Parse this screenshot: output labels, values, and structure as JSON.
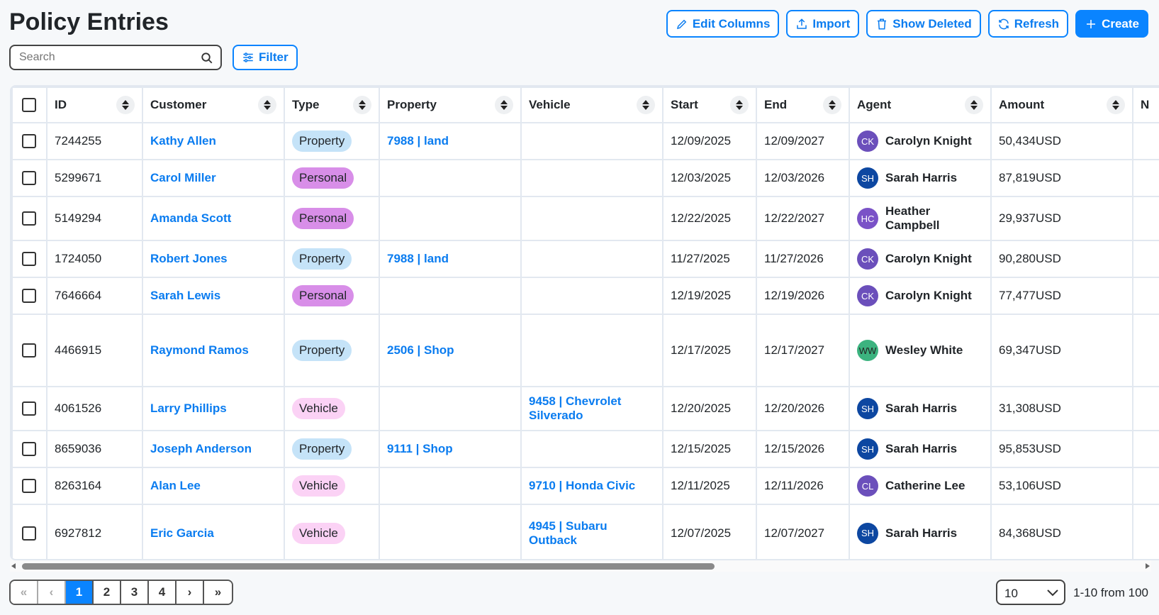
{
  "title": "Policy Entries",
  "toolbar": {
    "edit_columns": "Edit Columns",
    "import": "Import",
    "show_deleted": "Show Deleted",
    "refresh": "Refresh",
    "create": "Create"
  },
  "search": {
    "placeholder": "Search",
    "value": ""
  },
  "filter_label": "Filter",
  "colors": {
    "accent": "#0a84ff",
    "property": "#c5e3f8",
    "personal": "#d88ee8",
    "vehicle": "#fbd2f5"
  },
  "columns": [
    "ID",
    "Customer",
    "Type",
    "Property",
    "Vehicle",
    "Start",
    "End",
    "Agent",
    "Amount",
    "N"
  ],
  "rows": [
    {
      "id": "7244255",
      "customer": "Kathy Allen",
      "type": "Property",
      "property": "7988 | land",
      "vehicle": "",
      "start": "12/09/2025",
      "end": "12/09/2027",
      "agent": "Carolyn Knight",
      "initials": "CK",
      "avatar_color": "#6b4fbb",
      "amount": "50,434USD"
    },
    {
      "id": "5299671",
      "customer": "Carol Miller",
      "type": "Personal",
      "property": "",
      "vehicle": "",
      "start": "12/03/2025",
      "end": "12/03/2026",
      "agent": "Sarah Harris",
      "initials": "SH",
      "avatar_color": "#0d47a1",
      "amount": "87,819USD"
    },
    {
      "id": "5149294",
      "customer": "Amanda Scott",
      "type": "Personal",
      "property": "",
      "vehicle": "",
      "start": "12/22/2025",
      "end": "12/22/2027",
      "agent": "Heather Campbell",
      "initials": "HC",
      "avatar_color": "#7a52c7",
      "amount": "29,937USD"
    },
    {
      "id": "1724050",
      "customer": "Robert Jones",
      "type": "Property",
      "property": "7988 | land",
      "vehicle": "",
      "start": "11/27/2025",
      "end": "11/27/2026",
      "agent": "Carolyn Knight",
      "initials": "CK",
      "avatar_color": "#6b4fbb",
      "amount": "90,280USD"
    },
    {
      "id": "7646664",
      "customer": "Sarah Lewis",
      "type": "Personal",
      "property": "",
      "vehicle": "",
      "start": "12/19/2025",
      "end": "12/19/2026",
      "agent": "Carolyn Knight",
      "initials": "CK",
      "avatar_color": "#6b4fbb",
      "amount": "77,477USD"
    },
    {
      "id": "4466915",
      "customer": "Raymond Ramos",
      "type": "Property",
      "property": "2506 | Shop",
      "vehicle": "",
      "start": "12/17/2025",
      "end": "12/17/2027",
      "agent": "Wesley White",
      "initials": "WW",
      "avatar_color": "#3cb37f",
      "amount": "69,347USD"
    },
    {
      "id": "4061526",
      "customer": "Larry Phillips",
      "type": "Vehicle",
      "property": "",
      "vehicle": "9458 | Chevrolet Silverado",
      "start": "12/20/2025",
      "end": "12/20/2026",
      "agent": "Sarah Harris",
      "initials": "SH",
      "avatar_color": "#0d47a1",
      "amount": "31,308USD"
    },
    {
      "id": "8659036",
      "customer": "Joseph Anderson",
      "type": "Property",
      "property": "9111 | Shop",
      "vehicle": "",
      "start": "12/15/2025",
      "end": "12/15/2026",
      "agent": "Sarah Harris",
      "initials": "SH",
      "avatar_color": "#0d47a1",
      "amount": "95,853USD"
    },
    {
      "id": "8263164",
      "customer": "Alan Lee",
      "type": "Vehicle",
      "property": "",
      "vehicle": "9710 | Honda Civic",
      "start": "12/11/2025",
      "end": "12/11/2026",
      "agent": "Catherine Lee",
      "initials": "CL",
      "avatar_color": "#6b4fbb",
      "amount": "53,106USD"
    },
    {
      "id": "6927812",
      "customer": "Eric Garcia",
      "type": "Vehicle",
      "property": "",
      "vehicle": "4945 | Subaru Outback",
      "start": "12/07/2025",
      "end": "12/07/2027",
      "agent": "Sarah Harris",
      "initials": "SH",
      "avatar_color": "#0d47a1",
      "amount": "84,368USD"
    }
  ],
  "pagination": {
    "pages": [
      "1",
      "2",
      "3",
      "4"
    ],
    "current": "1",
    "page_size": "10",
    "range": "1-10 from 100"
  }
}
